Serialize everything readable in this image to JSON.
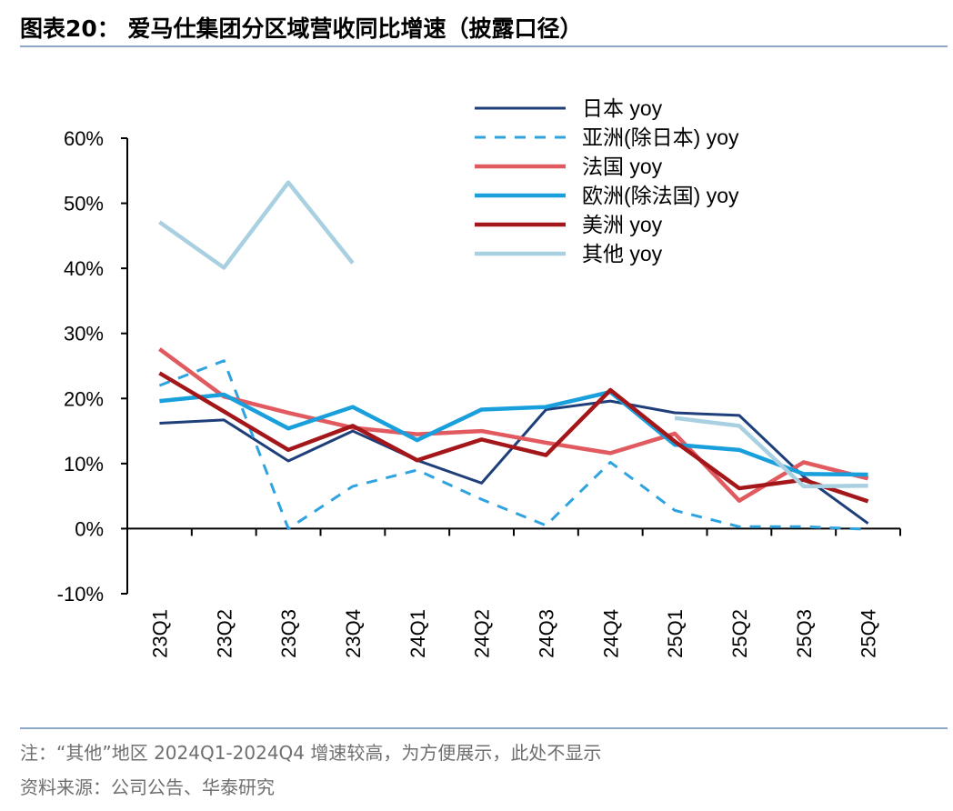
{
  "header": {
    "title": "图表20：  爱马仕集团分区域营收同比增速（披露口径）"
  },
  "footer": {
    "note": "注：“其他”地区 2024Q1-2024Q4 增速较高，为方便展示，此处不显示",
    "source": "资料来源：公司公告、华泰研究"
  },
  "chart_data": {
    "type": "line",
    "title": "图表20：  爱马仕集团分区域营收同比增速（披露口径）",
    "xlabel": "",
    "ylabel": "",
    "ylim": [
      -10,
      60
    ],
    "yticks": [
      -10,
      0,
      10,
      20,
      30,
      40,
      50,
      60
    ],
    "ytick_labels": [
      "-10%",
      "0%",
      "10%",
      "20%",
      "30%",
      "40%",
      "50%",
      "60%"
    ],
    "grid": false,
    "legend_position": "top-right",
    "categories": [
      "23Q1",
      "23Q2",
      "23Q3",
      "23Q4",
      "24Q1",
      "24Q2",
      "24Q3",
      "24Q4",
      "25Q1",
      "25Q2",
      "25Q3",
      "25Q4"
    ],
    "series": [
      {
        "name": "日本 yoy",
        "color": "#1f3f7a",
        "dash": "solid",
        "width": 3,
        "values": [
          16.2,
          16.7,
          10.4,
          15.0,
          10.5,
          7.0,
          18.3,
          19.6,
          17.8,
          17.4,
          8.0,
          0.8
        ]
      },
      {
        "name": "亚洲(除日本) yoy",
        "color": "#2fa3e0",
        "dash": "dashed",
        "width": 3,
        "values": [
          22.0,
          25.8,
          0.0,
          6.5,
          9.0,
          4.5,
          0.5,
          10.2,
          2.8,
          0.3,
          0.3,
          -0.1
        ]
      },
      {
        "name": "法国 yoy",
        "color": "#e05a5f",
        "dash": "solid",
        "width": 4.5,
        "values": [
          27.6,
          20.3,
          17.8,
          15.5,
          14.5,
          15.0,
          13.2,
          11.6,
          14.6,
          4.3,
          10.2,
          7.7
        ]
      },
      {
        "name": "欧洲(除法国) yoy",
        "color": "#19a0dc",
        "dash": "solid",
        "width": 4.5,
        "values": [
          19.6,
          20.6,
          15.4,
          18.7,
          13.6,
          18.3,
          18.7,
          21.0,
          12.9,
          12.1,
          8.4,
          8.3
        ]
      },
      {
        "name": "美洲 yoy",
        "color": "#a3161a",
        "dash": "solid",
        "width": 4.5,
        "values": [
          23.9,
          18.0,
          12.1,
          15.8,
          10.5,
          13.7,
          11.3,
          21.3,
          13.4,
          6.2,
          7.5,
          4.2
        ]
      },
      {
        "name": "其他 yoy",
        "color": "#a8d0e0",
        "dash": "solid",
        "width": 4.5,
        "values": [
          47.1,
          40.1,
          53.2,
          40.8,
          null,
          null,
          null,
          null,
          17.0,
          15.8,
          6.5,
          6.6
        ]
      }
    ]
  }
}
